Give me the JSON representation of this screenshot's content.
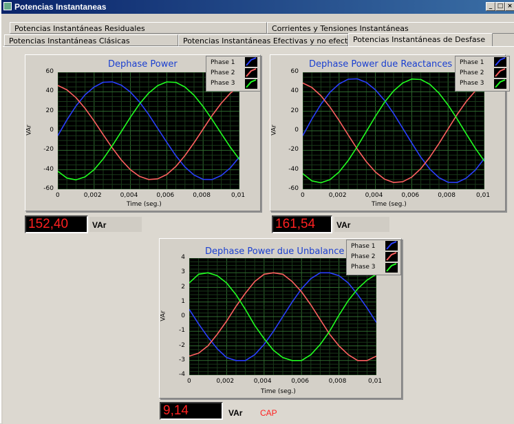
{
  "window": {
    "title": "Potencias Instantaneas",
    "controls": [
      "_",
      "□",
      "×"
    ]
  },
  "tabs": [
    {
      "label": "Potencias Instantáneas Residuales"
    },
    {
      "label": "Corrientes y Tensiones Instantáneas"
    },
    {
      "label": "Potencias Instantáneas Clásicas"
    },
    {
      "label": "Potencias Instantáneas Efectivas y no efectivas"
    },
    {
      "label": "Potencias Instantáneas de Desfase",
      "active": true
    }
  ],
  "colors": {
    "phase1": "#2a3fff",
    "phase2": "#ff6060",
    "phase3": "#20ff20",
    "grid_major": "#2f6b2f",
    "grid_minor": "#1a3a1a",
    "title": "#1a3fd0",
    "indicator_text": "#ff2020"
  },
  "legend": [
    "Phase 1",
    "Phase 2",
    "Phase 3"
  ],
  "panels": {
    "dephase": {
      "title": "Dephase Power",
      "ylabel": "VAr",
      "xlabel": "Time (seg.)",
      "value": "152,40",
      "unit": "VAr"
    },
    "reactances": {
      "title": "Dephase Power due Reactances",
      "ylabel": "VAr",
      "xlabel": "Time (seg.)",
      "value": "161,54",
      "unit": "VAr"
    },
    "unbalance": {
      "title": "Dephase Power due Unbalance",
      "ylabel": "VAr",
      "xlabel": "Time (seg.)",
      "value": "9,14",
      "unit": "VAr",
      "status": "CAP"
    }
  },
  "chart_data": [
    {
      "type": "line",
      "title": "Dephase Power",
      "xlabel": "Time (seg.)",
      "ylabel": "VAr",
      "xlim": [
        0,
        0.01
      ],
      "ylim": [
        -60,
        60
      ],
      "xticks": [
        "0",
        "0,002",
        "0,004",
        "0,006",
        "0,008",
        "0,01"
      ],
      "yticks": [
        "60",
        "40",
        "20",
        "0",
        "-20",
        "-40",
        "-60"
      ],
      "x": [
        0,
        0.0005,
        0.001,
        0.0015,
        0.002,
        0.0025,
        0.003,
        0.0035,
        0.004,
        0.0045,
        0.005,
        0.0055,
        0.006,
        0.0065,
        0.007,
        0.0075,
        0.008,
        0.0085,
        0.009,
        0.0095,
        0.01
      ],
      "series": [
        {
          "name": "Phase 1",
          "values": [
            -5,
            11.1,
            25.4,
            36.9,
            44.9,
            49.8,
            50.2,
            46.8,
            39.7,
            29.5,
            16.8,
            2.5,
            -11.8,
            -25.6,
            -37.1,
            -45.4,
            -49.8,
            -50.0,
            -45.9,
            -38.0,
            -26.8
          ]
        },
        {
          "name": "Phase 2",
          "values": [
            46.5,
            42.0,
            34.0,
            23.0,
            10.0,
            -4.0,
            -17.6,
            -30.0,
            -40.0,
            -46.8,
            -50.0,
            -49.3,
            -44.8,
            -36.6,
            -25.4,
            -12.3,
            1.8,
            15.8,
            28.3,
            38.6,
            45.7
          ]
        },
        {
          "name": "Phase 3",
          "values": [
            -41.5,
            -48.5,
            -50.3,
            -47.3,
            -39.9,
            -28.9,
            -15.3,
            -0.8,
            14.0,
            27.6,
            38.6,
            46.3,
            50.1,
            49.6,
            44.9,
            36.4,
            24.9,
            11.4,
            -2.9,
            -16.9,
            -29.4
          ]
        }
      ]
    },
    {
      "type": "line",
      "title": "Dephase Power due Reactances",
      "xlabel": "Time (seg.)",
      "ylabel": "VAr",
      "xlim": [
        0,
        0.01
      ],
      "ylim": [
        -60,
        60
      ],
      "xticks": [
        "0",
        "0,002",
        "0,004",
        "0,006",
        "0,008",
        "0,01"
      ],
      "yticks": [
        "60",
        "40",
        "20",
        "0",
        "-20",
        "-40",
        "-60"
      ],
      "x": [
        0,
        0.0005,
        0.001,
        0.0015,
        0.002,
        0.0025,
        0.003,
        0.0035,
        0.004,
        0.0045,
        0.005,
        0.0055,
        0.006,
        0.0065,
        0.007,
        0.0075,
        0.008,
        0.0085,
        0.009,
        0.0095,
        0.01
      ],
      "series": [
        {
          "name": "Phase 1",
          "values": [
            -5,
            12.0,
            27.2,
            39.5,
            48.1,
            52.9,
            53.3,
            49.6,
            42.0,
            31.2,
            17.8,
            2.7,
            -12.5,
            -27.1,
            -39.4,
            -48.1,
            -52.8,
            -53.0,
            -48.6,
            -40.3,
            -28.4
          ]
        },
        {
          "name": "Phase 2",
          "values": [
            49.0,
            44.5,
            36.0,
            24.3,
            10.5,
            -4.2,
            -18.7,
            -31.7,
            -42.3,
            -49.6,
            -53.0,
            -52.3,
            -47.5,
            -38.8,
            -26.9,
            -13.0,
            1.9,
            16.7,
            30.0,
            40.9,
            48.4
          ]
        },
        {
          "name": "Phase 3",
          "values": [
            -44.0,
            -51.4,
            -53.3,
            -50.1,
            -42.3,
            -30.6,
            -16.2,
            -0.8,
            14.8,
            29.2,
            40.9,
            49.0,
            53.1,
            52.6,
            47.6,
            38.6,
            26.4,
            12.1,
            -3.1,
            -17.9,
            -31.2
          ]
        }
      ]
    },
    {
      "type": "line",
      "title": "Dephase Power due Unbalance",
      "xlabel": "Time (seg.)",
      "ylabel": "VAr",
      "xlim": [
        0,
        0.01
      ],
      "ylim": [
        -4,
        4
      ],
      "xticks": [
        "0",
        "0,002",
        "0,004",
        "0,006",
        "0,008",
        "0,01"
      ],
      "yticks": [
        "4",
        "3",
        "2",
        "1",
        "0",
        "-1",
        "-2",
        "-3",
        "-4"
      ],
      "x": [
        0,
        0.0005,
        0.001,
        0.0015,
        0.002,
        0.0025,
        0.003,
        0.0035,
        0.004,
        0.0045,
        0.005,
        0.0055,
        0.006,
        0.0065,
        0.007,
        0.0075,
        0.008,
        0.0085,
        0.009,
        0.0095,
        0.01
      ],
      "series": [
        {
          "name": "Phase 1",
          "values": [
            0.5,
            -0.5,
            -1.4,
            -2.2,
            -2.8,
            -3.0,
            -3.0,
            -2.6,
            -1.9,
            -1.0,
            0.0,
            1.0,
            1.9,
            2.6,
            3.0,
            3.0,
            2.8,
            2.3,
            1.5,
            0.6,
            -0.4
          ]
        },
        {
          "name": "Phase 2",
          "values": [
            -2.7,
            -2.5,
            -2.0,
            -1.2,
            -0.3,
            0.7,
            1.6,
            2.4,
            2.9,
            3.0,
            2.9,
            2.4,
            1.7,
            0.8,
            -0.2,
            -1.2,
            -2.0,
            -2.6,
            -3.0,
            -3.0,
            -2.7
          ]
        },
        {
          "name": "Phase 3",
          "values": [
            2.3,
            2.9,
            3.0,
            2.8,
            2.3,
            1.5,
            0.5,
            -0.6,
            -1.5,
            -2.3,
            -2.8,
            -3.0,
            -3.0,
            -2.6,
            -1.9,
            -1.0,
            0.1,
            1.1,
            1.9,
            2.5,
            2.9
          ]
        }
      ]
    }
  ]
}
